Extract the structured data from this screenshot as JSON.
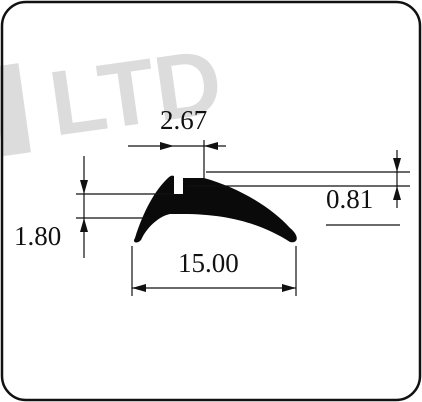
{
  "watermark": {
    "text": "LTD"
  },
  "dimensions": {
    "top_width": "2.67",
    "height_lip": "0.81",
    "height_total": "1.80",
    "base_width": "15.00"
  },
  "colors": {
    "frame": "#111111",
    "profile": "#0a0a0a",
    "watermark": "#dcdcdc",
    "background": "#ffffff"
  }
}
